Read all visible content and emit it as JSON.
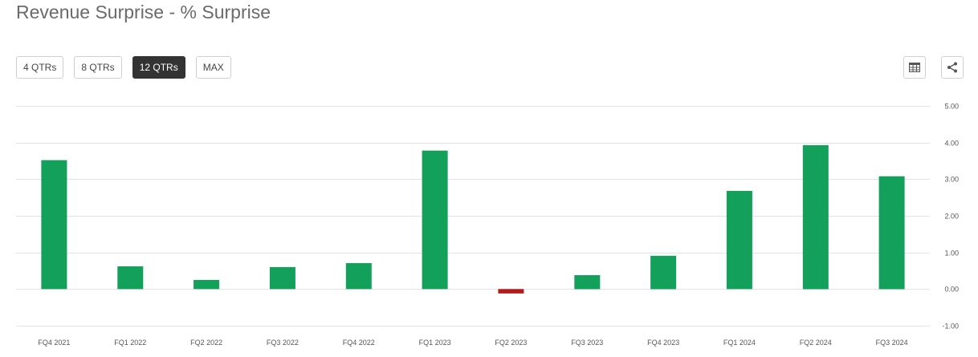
{
  "title": "Revenue Surprise - % Surprise",
  "range_buttons": [
    {
      "label": "4 QTRs",
      "active": false
    },
    {
      "label": "8 QTRs",
      "active": false
    },
    {
      "label": "12 QTRs",
      "active": true
    },
    {
      "label": "MAX",
      "active": false
    }
  ],
  "icons": {
    "table": "table-icon",
    "share": "share-icon"
  },
  "colors": {
    "positive": "#12a05a",
    "negative": "#b31b1b",
    "grid": "#e2e2e2",
    "active_button": "#333333"
  },
  "chart_data": {
    "type": "bar",
    "title": "Revenue Surprise - % Surprise",
    "categories": [
      "FQ4 2021",
      "FQ1 2022",
      "FQ2 2022",
      "FQ3 2022",
      "FQ4 2022",
      "FQ1 2023",
      "FQ2 2023",
      "FQ3 2023",
      "FQ4 2023",
      "FQ1 2024",
      "FQ2 2024",
      "FQ3 2024"
    ],
    "values": [
      3.52,
      0.62,
      0.25,
      0.6,
      0.71,
      3.78,
      -0.12,
      0.38,
      0.91,
      2.68,
      3.93,
      3.08
    ],
    "ylim": [
      -1.0,
      5.0
    ],
    "yticks": [
      5.0,
      4.0,
      3.0,
      2.0,
      1.0,
      0.0,
      -1.0
    ],
    "ytick_labels": [
      "5.00",
      "4.00",
      "3.00",
      "2.00",
      "1.00",
      "0.00",
      "-1.00"
    ],
    "y_axis_position": "right",
    "grid": true,
    "legend": false
  }
}
